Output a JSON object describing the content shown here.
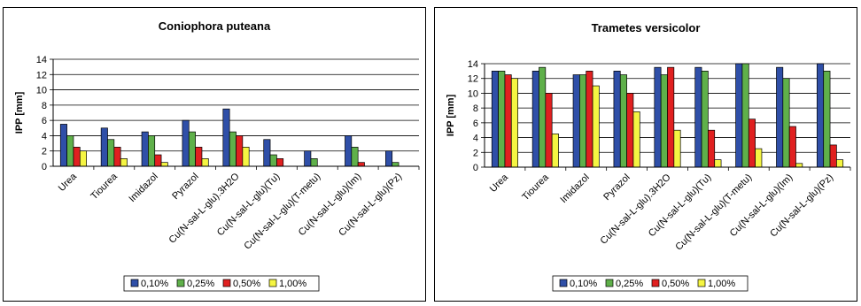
{
  "chart_data": [
    {
      "type": "bar",
      "title": "Coniophora puteana",
      "ylabel": "IPP [mm]",
      "xlabel": "",
      "ylim": [
        0,
        14
      ],
      "yticks": [
        "0",
        "2",
        "4",
        "6",
        "8",
        "10",
        "12",
        "14"
      ],
      "grid": true,
      "legend_position": "bottom",
      "categories": [
        "Urea",
        "Tiourea",
        "Imidazol",
        "Pyrazol",
        "Cu(N-sal-L-glu).3H2O",
        "Cu(N-sal-L-glu)(Tu)",
        "Cu(N-sal-L-glu)(T-metu)",
        "Cu(N-sal-L-glu)(Im)",
        "Cu(N-sal-L-glu)(Pz)"
      ],
      "series": [
        {
          "name": "0,10%",
          "color": "#2f4fa8",
          "values": [
            5.5,
            5,
            4.5,
            6,
            7.5,
            3.5,
            2,
            4,
            2
          ]
        },
        {
          "name": "0,25%",
          "color": "#5fb04a",
          "values": [
            4,
            3.5,
            4,
            4.5,
            4.5,
            1.5,
            1,
            2.5,
            0.5
          ]
        },
        {
          "name": "0,50%",
          "color": "#e02020",
          "values": [
            2.5,
            2.5,
            1.5,
            2.5,
            4,
            1,
            0,
            0.5,
            0
          ]
        },
        {
          "name": "1,00%",
          "color": "#f5f542",
          "values": [
            2,
            1,
            0.5,
            1,
            2.5,
            0,
            0,
            0,
            0
          ]
        }
      ]
    },
    {
      "type": "bar",
      "title": "Trametes versicolor",
      "ylabel": "IPP [mm]",
      "xlabel": "",
      "ylim": [
        0,
        14
      ],
      "yticks": [
        "0",
        "2",
        "4",
        "6",
        "8",
        "10",
        "12",
        "14"
      ],
      "grid": true,
      "legend_position": "bottom",
      "categories": [
        "Urea",
        "Tiourea",
        "Imidazol",
        "Pyrazol",
        "Cu(N-sal-L-glu).3H2O",
        "Cu(N-sal-L-glu)(Tu)",
        "Cu(N-sal-L-glu)(T-metu)",
        "Cu(N-sal-L-glu)(Im)",
        "Cu(N-sal-L-glu)(Pz)"
      ],
      "series": [
        {
          "name": "0,10%",
          "color": "#2f4fa8",
          "values": [
            13,
            13,
            12.5,
            13,
            13.5,
            13.5,
            14,
            13.5,
            14
          ]
        },
        {
          "name": "0,25%",
          "color": "#5fb04a",
          "values": [
            13,
            13.5,
            12.5,
            12.5,
            12.5,
            13,
            14,
            12,
            13
          ]
        },
        {
          "name": "0,50%",
          "color": "#e02020",
          "values": [
            12.5,
            10,
            13,
            10,
            13.5,
            5,
            6.5,
            5.5,
            3
          ]
        },
        {
          "name": "1,00%",
          "color": "#f5f542",
          "values": [
            12,
            4.5,
            11,
            7.5,
            5,
            1,
            2.5,
            0.5,
            1
          ]
        }
      ]
    }
  ]
}
